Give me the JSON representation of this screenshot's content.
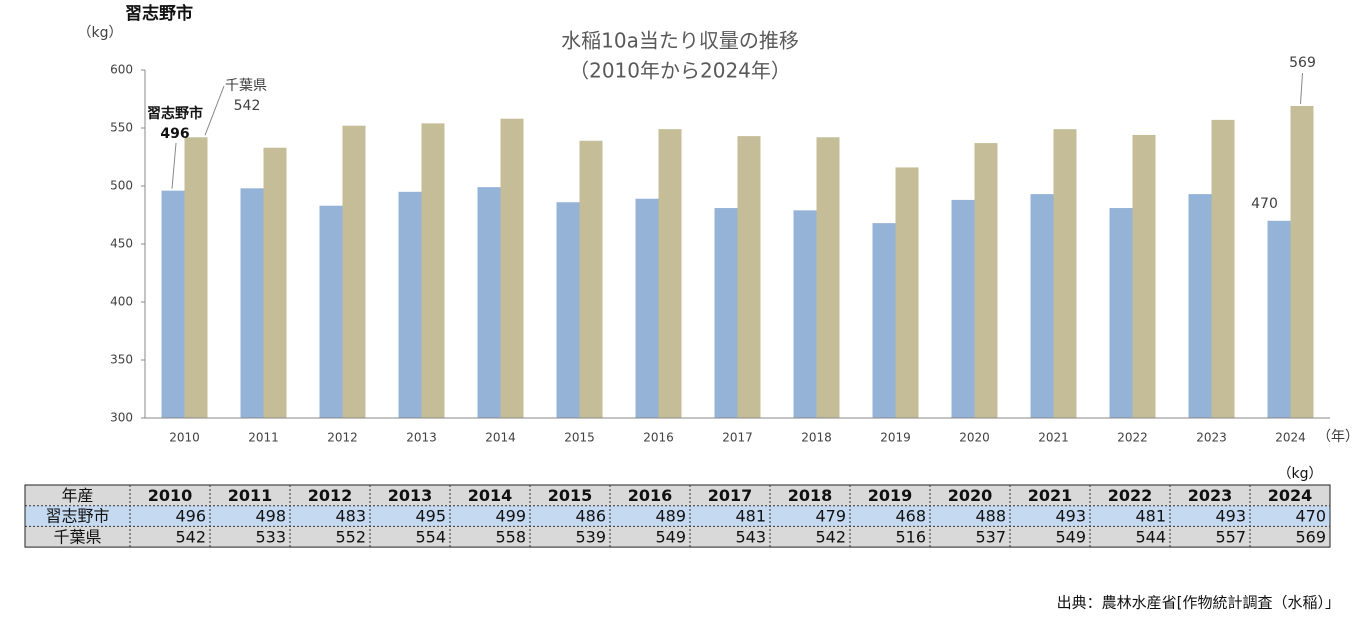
{
  "header": "習志野市",
  "chart_data": {
    "type": "bar",
    "title": "水稲10a当たり収量の推移",
    "subtitle": "（2010年から2024年）",
    "y_label": "（kg）",
    "x_label": "（年）",
    "categories": [
      "2010",
      "2011",
      "2012",
      "2013",
      "2014",
      "2015",
      "2016",
      "2017",
      "2018",
      "2019",
      "2020",
      "2021",
      "2022",
      "2023",
      "2024"
    ],
    "series": [
      {
        "name": "習志野市",
        "color": "#95b3d7",
        "values": [
          496,
          498,
          483,
          495,
          499,
          486,
          489,
          481,
          479,
          468,
          488,
          493,
          481,
          493,
          470
        ]
      },
      {
        "name": "千葉県",
        "color": "#c4bd97",
        "values": [
          542,
          533,
          552,
          554,
          558,
          539,
          549,
          543,
          542,
          516,
          537,
          549,
          544,
          557,
          569
        ]
      }
    ],
    "ylim": [
      300,
      600
    ],
    "yticks": [
      300,
      350,
      400,
      450,
      500,
      550,
      600
    ],
    "grid": false
  },
  "table": {
    "corner": "年産",
    "unit": "（kg）"
  },
  "source": "出典：農林水産省[作物統計調査（水稲）」"
}
